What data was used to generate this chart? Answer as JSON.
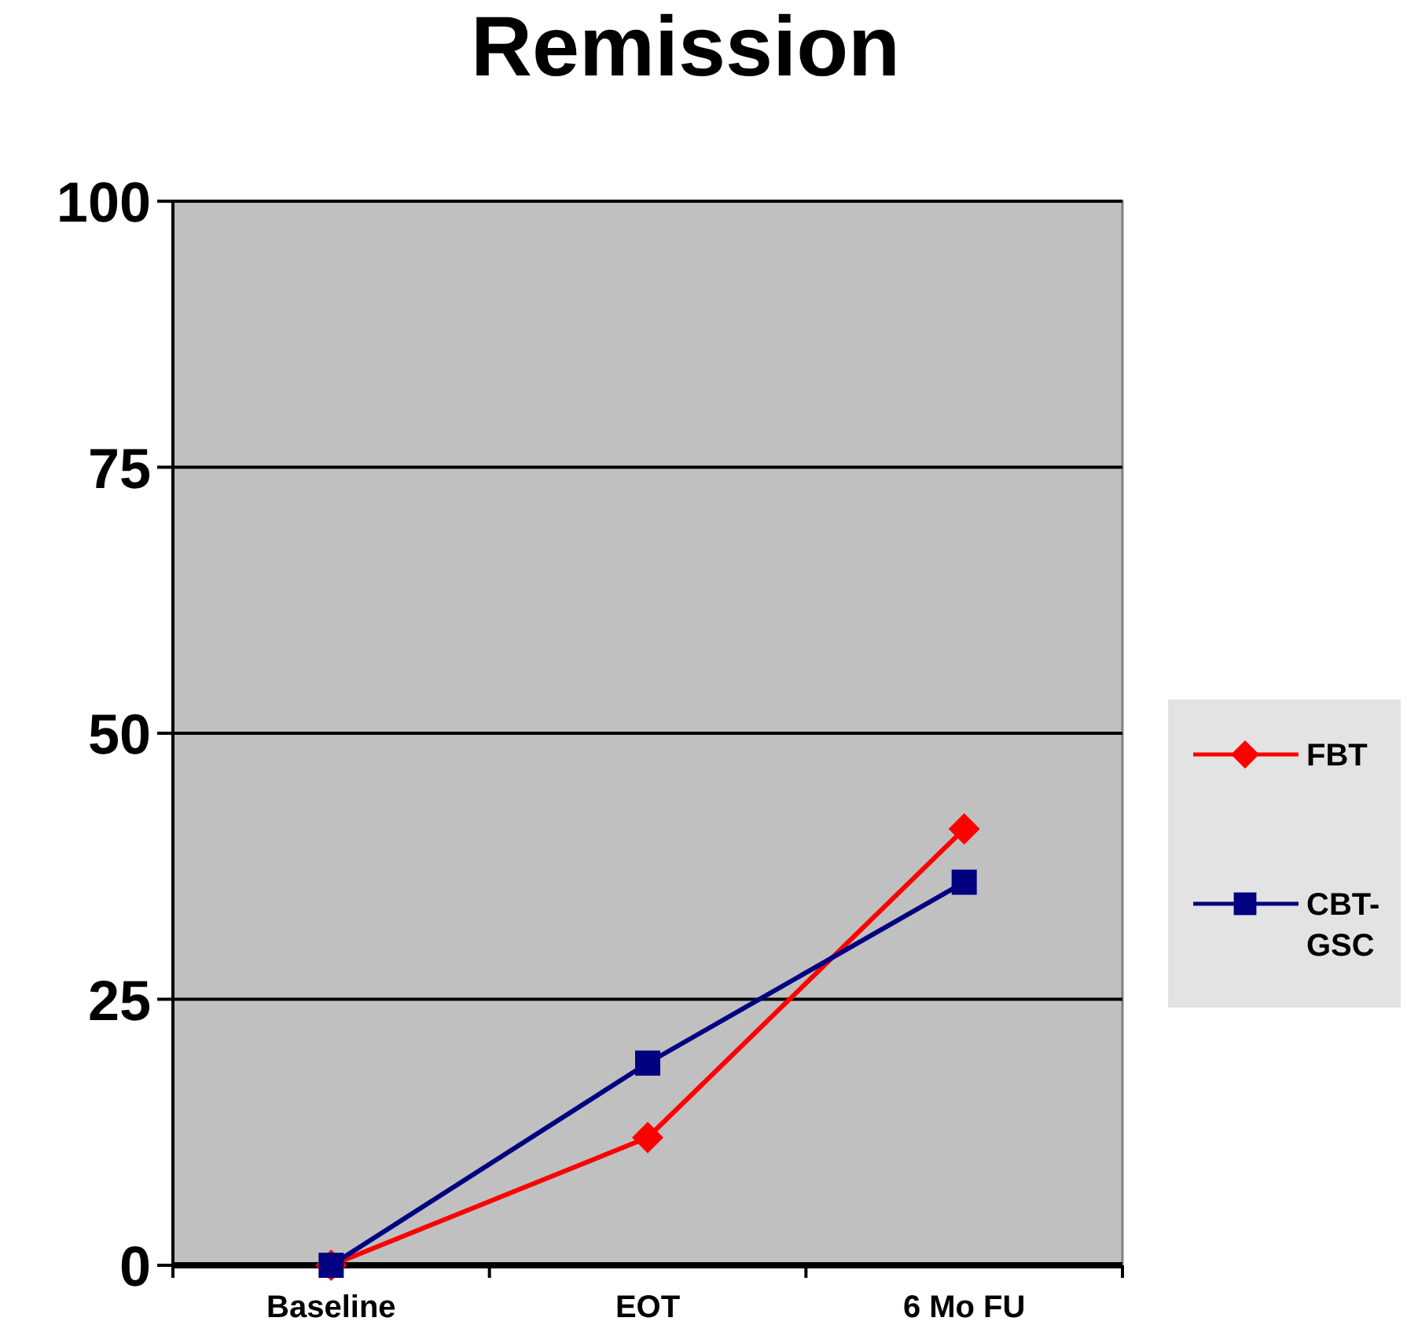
{
  "chart_data": {
    "type": "line",
    "title": "Remission",
    "categories": [
      "Baseline",
      "EOT",
      "6 Mo FU"
    ],
    "series": [
      {
        "name": "FBT",
        "color": "#ff0000",
        "marker": "diamond",
        "values": [
          0,
          12,
          41
        ]
      },
      {
        "name": "CBT-GSC",
        "color": "#000080",
        "marker": "square",
        "values": [
          0,
          19,
          36
        ]
      }
    ],
    "ylim": [
      0,
      100
    ],
    "yticks": [
      0,
      25,
      50,
      75,
      100
    ],
    "grid": "y",
    "legend": "right",
    "line_style": "solid"
  }
}
